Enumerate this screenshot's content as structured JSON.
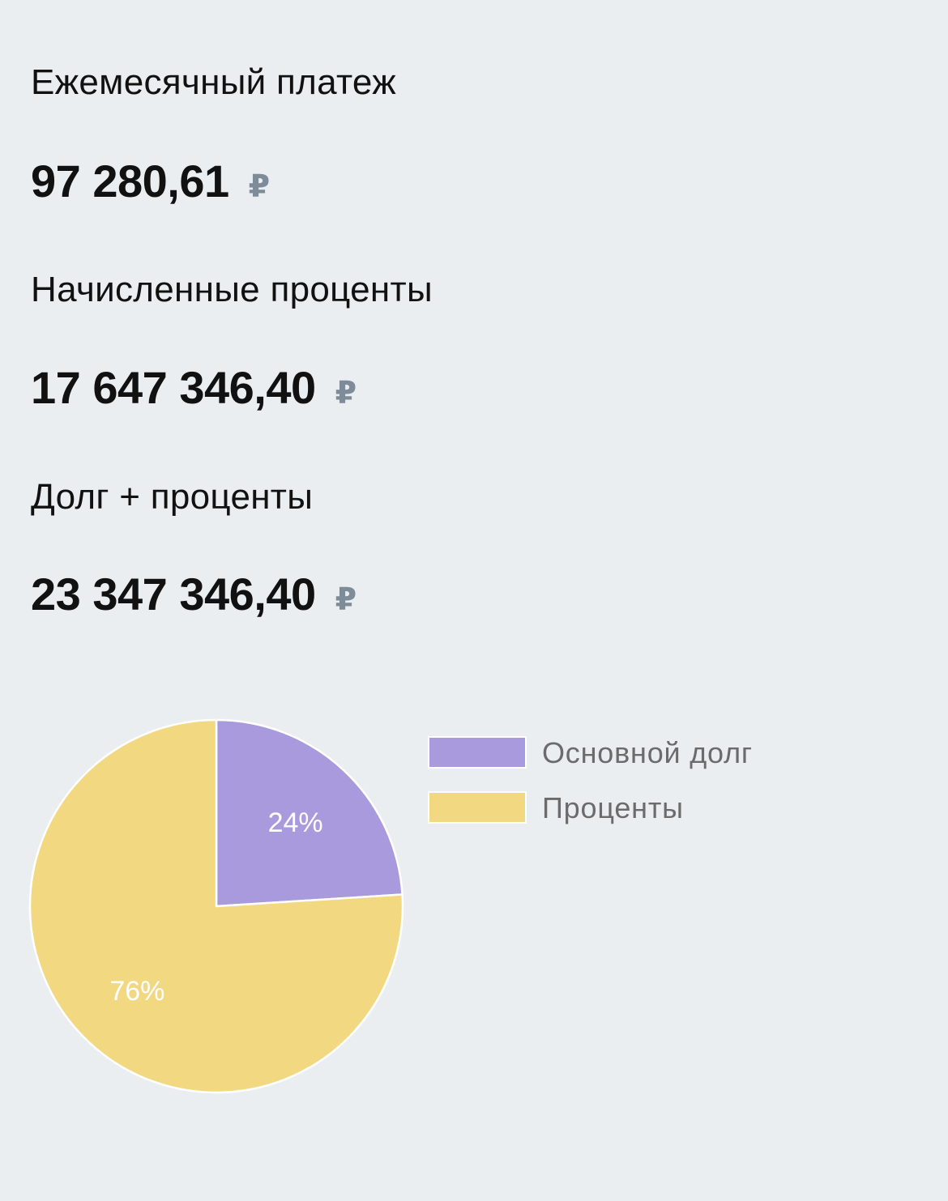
{
  "metrics": [
    {
      "label": "Ежемесячный платеж",
      "value": "97 280,61",
      "currency": "₽"
    },
    {
      "label": "Начисленные проценты",
      "value": "17 647 346,40",
      "currency": "₽"
    },
    {
      "label": "Долг + проценты",
      "value": "23 347 346,40",
      "currency": "₽"
    }
  ],
  "colors": {
    "background": "#ebeef0",
    "text": "#111111",
    "currency": "#7e8b98",
    "principal": "#a99ade",
    "interest": "#f2d880",
    "legend_text": "#6b6b6b",
    "slice_label": "#ffffff"
  },
  "chart_data": {
    "type": "pie",
    "categories": [
      "Основной долг",
      "Проценты"
    ],
    "values": [
      24,
      76
    ],
    "labels": [
      "24%",
      "76%"
    ],
    "legend": "right"
  }
}
